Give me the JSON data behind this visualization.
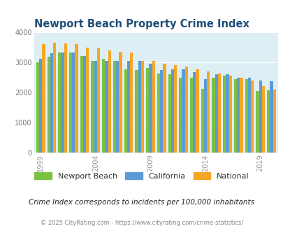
{
  "title": "Newport Beach Property Crime Index",
  "subtitle": "Crime Index corresponds to incidents per 100,000 inhabitants",
  "footer": "© 2025 CityRating.com - https://www.cityrating.com/crime-statistics/",
  "years": [
    1999,
    2000,
    2001,
    2002,
    2003,
    2004,
    2005,
    2006,
    2007,
    2008,
    2009,
    2010,
    2011,
    2012,
    2013,
    2014,
    2015,
    2016,
    2017,
    2018,
    2019,
    2020
  ],
  "newport_beach": [
    3000,
    3200,
    3340,
    3340,
    3220,
    3050,
    3110,
    3050,
    2780,
    2750,
    2820,
    2640,
    2610,
    2480,
    2500,
    2110,
    2500,
    2550,
    2450,
    2450,
    2050,
    2070
  ],
  "california": [
    3110,
    3300,
    3330,
    3340,
    3220,
    3050,
    3050,
    3050,
    3060,
    3060,
    2950,
    2750,
    2780,
    2770,
    2680,
    2450,
    2600,
    2600,
    2500,
    2480,
    2390,
    2370
  ],
  "national": [
    3600,
    3660,
    3640,
    3620,
    3500,
    3470,
    3390,
    3360,
    3320,
    3050,
    3050,
    2960,
    2920,
    2870,
    2760,
    2700,
    2620,
    2560,
    2490,
    2400,
    2220,
    2100
  ],
  "bar_colors": {
    "newport_beach": "#7cc142",
    "california": "#5b9bd5",
    "national": "#f5a623"
  },
  "bg_color": "#deeef5",
  "title_color": "#1f4e79",
  "subtitle_color": "#222222",
  "footer_color": "#888888",
  "ylim": [
    0,
    4000
  ],
  "yticks": [
    0,
    1000,
    2000,
    3000,
    4000
  ],
  "xtick_years": [
    1999,
    2004,
    2009,
    2014,
    2019
  ]
}
